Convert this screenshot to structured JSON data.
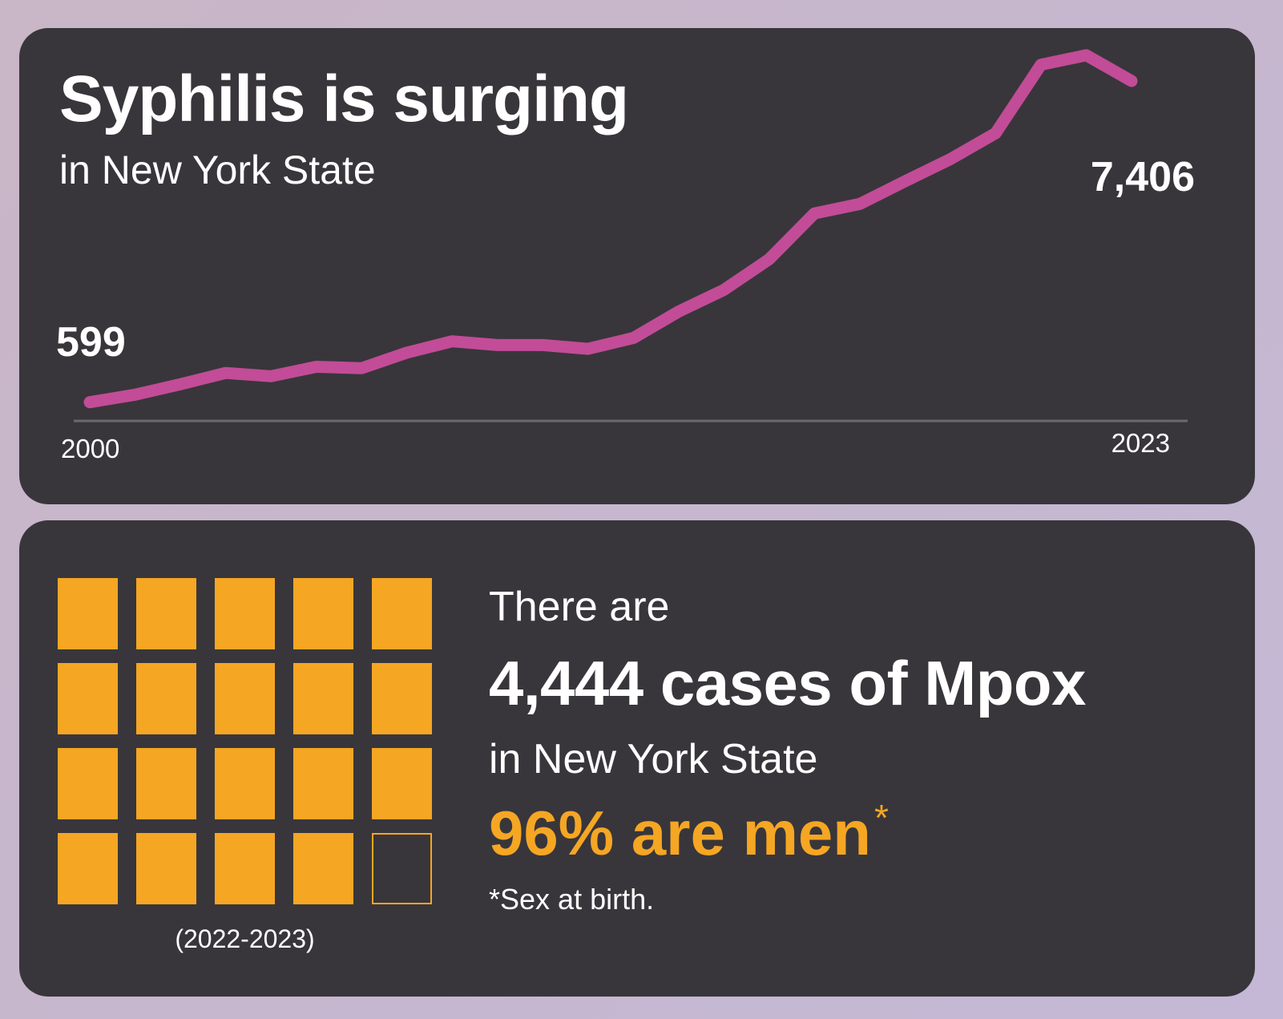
{
  "syphilis": {
    "title": "Syphilis is surging",
    "subtitle": "in New York State",
    "colors": {
      "line": "#c24c97",
      "axis": "#6b6a6f",
      "text": "#ffffff"
    }
  },
  "chart_data": {
    "type": "line",
    "title": "Syphilis is surging",
    "subtitle": "in New York State",
    "x": [
      2000,
      2001,
      2002,
      2003,
      2004,
      2005,
      2006,
      2007,
      2008,
      2009,
      2010,
      2011,
      2012,
      2013,
      2014,
      2015,
      2016,
      2017,
      2018,
      2019,
      2020,
      2021,
      2022,
      2023
    ],
    "series": [
      {
        "values": [
          599,
          760,
          980,
          1220,
          1150,
          1350,
          1320,
          1650,
          1890,
          1810,
          1810,
          1730,
          1960,
          2520,
          2980,
          3630,
          4600,
          4800,
          5280,
          5750,
          6300,
          7750,
          7950,
          7406
        ]
      }
    ],
    "tick_labels": [
      "2000",
      "2023"
    ],
    "data_labels": [
      "599",
      "7,406"
    ],
    "grid": false,
    "xlabel": "",
    "ylabel": ""
  },
  "mpox": {
    "intro": "There are",
    "headline": "4,444 cases of Mpox",
    "region": "in New York State",
    "stat": "96% are men",
    "asterisk": "*",
    "footnote": "*Sex at birth.",
    "period": "(2022-2023)",
    "waffle": {
      "filled": 19,
      "total": 20
    },
    "colors": {
      "accent": "#f5a623"
    }
  }
}
